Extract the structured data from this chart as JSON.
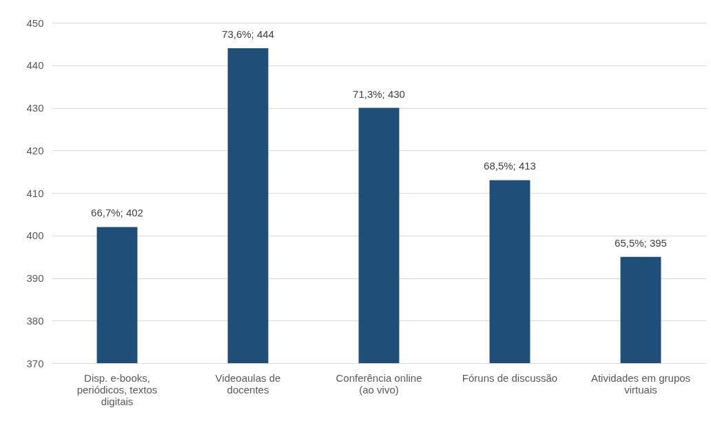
{
  "chart_data": {
    "type": "bar",
    "categories": [
      "Disp. e-books, periódicos, textos digitais",
      "Videoaulas de docentes",
      "Conferência online (ao vivo)",
      "Fóruns de discussão",
      "Atividades em grupos virtuais"
    ],
    "values": [
      402,
      444,
      430,
      413,
      395
    ],
    "value_labels": [
      "66,7%; 402",
      "73,6%; 444",
      "71,3%; 430",
      "68,5%; 413",
      "65,5%; 395"
    ],
    "color": "#1f4e79",
    "ylim": [
      370,
      450
    ],
    "yticks": [
      370,
      380,
      390,
      400,
      410,
      420,
      430,
      440,
      450
    ],
    "grid": "y"
  }
}
